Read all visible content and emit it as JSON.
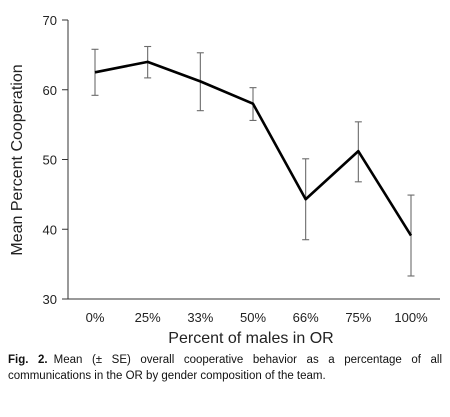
{
  "chart_data": {
    "type": "line",
    "xlabel": "Percent of males in OR",
    "ylabel": "Mean Percent Cooperation",
    "categories": [
      "0%",
      "25%",
      "33%",
      "50%",
      "66%",
      "75%",
      "100%"
    ],
    "values": [
      62.5,
      64.0,
      61.2,
      58.0,
      44.3,
      51.2,
      39.1
    ],
    "error_low": [
      59.2,
      61.7,
      57.0,
      55.6,
      38.5,
      46.8,
      33.3
    ],
    "error_high": [
      65.8,
      66.2,
      65.3,
      60.3,
      50.1,
      55.4,
      44.9
    ],
    "ylim": [
      30,
      70
    ],
    "yticks": [
      30,
      40,
      50,
      60,
      70
    ],
    "grid": false,
    "line_color": "#000000",
    "error_color": "#6b6b6b"
  },
  "caption": {
    "label": "Fig. 2.",
    "text": "Mean (± SE) overall cooperative behavior as a percentage of all communications in the OR by gender composition of the team."
  }
}
